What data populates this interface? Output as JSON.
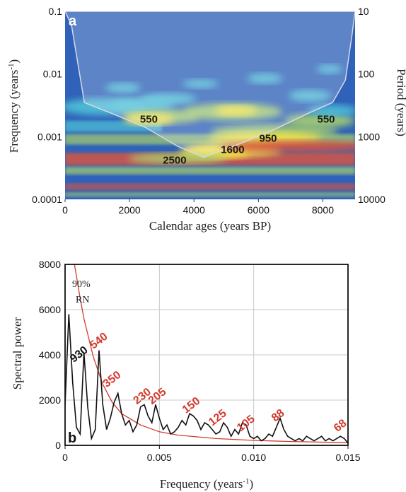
{
  "chart_data": [
    {
      "type": "heatmap",
      "panel": "a",
      "xlabel": "Calendar ages (years BP)",
      "ylabel_left": "Frequency (years-1)",
      "ylabel_right": "Period (years)",
      "xlim": [
        0,
        9000
      ],
      "x_ticks": [
        "0",
        "2000",
        "4000",
        "6000",
        "8000"
      ],
      "y_scale": "log",
      "ylim": [
        0.0001,
        0.1
      ],
      "y_ticks_left": [
        "0.1",
        "0.01",
        "0.001",
        "0.0001"
      ],
      "y_ticks_right": [
        "10",
        "100",
        "1000",
        "10000"
      ],
      "annotations": [
        {
          "text": "550",
          "x": 2600,
          "freq": 0.0019
        },
        {
          "text": "950",
          "x": 6300,
          "freq": 0.00095
        },
        {
          "text": "550",
          "x": 8100,
          "freq": 0.0019
        },
        {
          "text": "1600",
          "x": 5200,
          "freq": 0.00062
        },
        {
          "text": "2500",
          "x": 3400,
          "freq": 0.00042
        }
      ],
      "cone_of_influence": [
        [
          0,
          0.1
        ],
        [
          200,
          0.06
        ],
        [
          600,
          0.0035
        ],
        [
          1500,
          0.0023
        ],
        [
          2500,
          0.0014
        ],
        [
          3500,
          0.0007
        ],
        [
          4300,
          0.00047
        ],
        [
          5500,
          0.0008
        ],
        [
          6500,
          0.0013
        ],
        [
          7500,
          0.0023
        ],
        [
          8300,
          0.0035
        ],
        [
          8700,
          0.008
        ],
        [
          8900,
          0.04
        ],
        [
          9000,
          0.1
        ]
      ],
      "colors": {
        "low": "#2a5db5",
        "mid": "#4fc3d8",
        "green": "#a9d06e",
        "yellow": "#f6e24a",
        "red": "#e0553a"
      }
    },
    {
      "type": "line",
      "panel": "b",
      "xlabel": "Frequency (years-1)",
      "ylabel": "Spectral power",
      "xlim": [
        0,
        0.015
      ],
      "ylim": [
        0,
        8000
      ],
      "x_ticks": [
        "0",
        "0.005",
        "0.010",
        "0.015"
      ],
      "y_ticks": [
        "0",
        "2000",
        "4000",
        "6000",
        "8000"
      ],
      "grid": true,
      "series": [
        {
          "color": "#111111",
          "x": [
            0,
            0.0002,
            0.0004,
            0.0006,
            0.0008,
            0.001,
            0.0012,
            0.0014,
            0.0016,
            0.0018,
            0.002,
            0.0022,
            0.0024,
            0.0026,
            0.0028,
            0.003,
            0.0032,
            0.0034,
            0.0036,
            0.0038,
            0.004,
            0.0042,
            0.0044,
            0.0046,
            0.0048,
            0.005,
            0.0052,
            0.0054,
            0.0056,
            0.0058,
            0.006,
            0.0062,
            0.0064,
            0.0066,
            0.0068,
            0.007,
            0.0072,
            0.0074,
            0.0076,
            0.0078,
            0.008,
            0.0082,
            0.0084,
            0.0086,
            0.0088,
            0.009,
            0.0092,
            0.0094,
            0.0096,
            0.0098,
            0.01,
            0.0102,
            0.0104,
            0.0106,
            0.0108,
            0.011,
            0.0112,
            0.0114,
            0.0116,
            0.0118,
            0.012,
            0.0122,
            0.0124,
            0.0126,
            0.0128,
            0.013,
            0.0132,
            0.0134,
            0.0136,
            0.0138,
            0.014,
            0.0142,
            0.0144,
            0.0146,
            0.0148,
            0.015
          ],
          "values": [
            1800,
            5800,
            2800,
            800,
            500,
            4100,
            1700,
            300,
            700,
            4200,
            1800,
            700,
            1200,
            1900,
            2300,
            1400,
            900,
            1100,
            600,
            900,
            1700,
            1800,
            1300,
            1000,
            1800,
            1200,
            700,
            900,
            500,
            600,
            800,
            1100,
            900,
            1400,
            1300,
            1100,
            700,
            1000,
            900,
            700,
            500,
            600,
            1000,
            800,
            400,
            700,
            500,
            1000,
            900,
            400,
            300,
            400,
            200,
            300,
            500,
            400,
            800,
            1200,
            700,
            400,
            300,
            200,
            300,
            200,
            400,
            300,
            200,
            300,
            400,
            200,
            300,
            200,
            300,
            400,
            300,
            100
          ]
        },
        {
          "name": "90% RN",
          "color": "#d23b2e",
          "x": [
            0.0005,
            0.0008,
            0.001,
            0.0015,
            0.002,
            0.0025,
            0.003,
            0.004,
            0.005,
            0.006,
            0.008,
            0.01,
            0.012,
            0.015
          ],
          "values": [
            8000,
            6500,
            5600,
            3900,
            2700,
            1900,
            1400,
            900,
            600,
            450,
            300,
            220,
            170,
            120
          ]
        }
      ],
      "peak_labels": [
        {
          "text": "930",
          "x": 0.00085,
          "y": 3900,
          "color": "#111111"
        },
        {
          "text": "540",
          "x": 0.0019,
          "y": 4500,
          "color": "#d23b2e"
        },
        {
          "text": "350",
          "x": 0.0026,
          "y": 2800,
          "color": "#d23b2e"
        },
        {
          "text": "230",
          "x": 0.0042,
          "y": 2050,
          "color": "#d23b2e"
        },
        {
          "text": "205",
          "x": 0.005,
          "y": 2050,
          "color": "#d23b2e"
        },
        {
          "text": "150",
          "x": 0.0068,
          "y": 1650,
          "color": "#d23b2e"
        },
        {
          "text": "125",
          "x": 0.0082,
          "y": 1100,
          "color": "#d23b2e"
        },
        {
          "text": "105",
          "x": 0.0097,
          "y": 850,
          "color": "#d23b2e"
        },
        {
          "text": "88",
          "x": 0.0114,
          "y": 1200,
          "color": "#d23b2e"
        },
        {
          "text": "68",
          "x": 0.0147,
          "y": 750,
          "color": "#d23b2e"
        }
      ],
      "rn_label_line1": "90%",
      "rn_label_line2": "RN"
    }
  ]
}
